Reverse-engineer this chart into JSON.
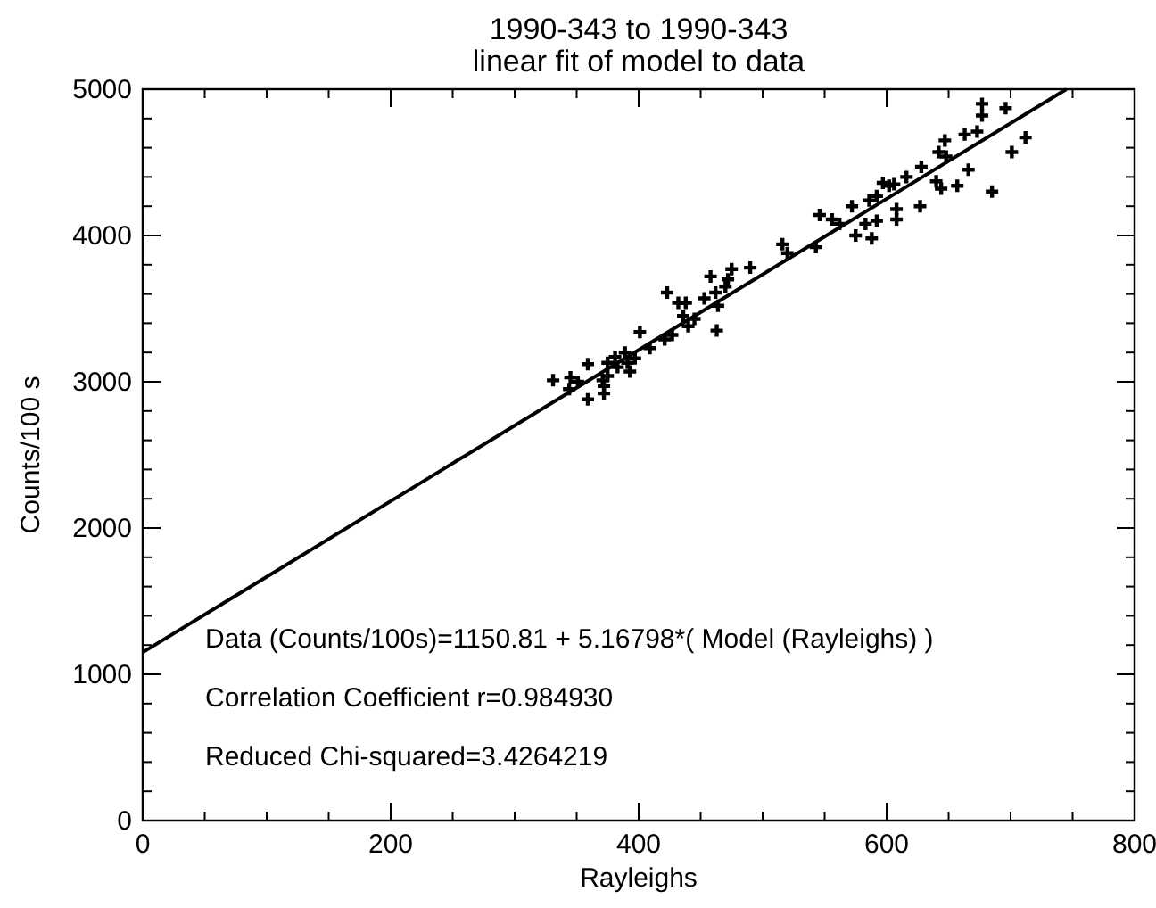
{
  "chart_data": {
    "type": "scatter",
    "title": "1990-343 to 1990-343",
    "subtitle": "linear fit of model to data",
    "xlabel": "Rayleighs",
    "ylabel": "Counts/100 s",
    "xlim": [
      0,
      800
    ],
    "ylim": [
      0,
      5000
    ],
    "xticks": [
      0,
      {
        "value": 50,
        "label": null
      },
      {
        "value": 100,
        "label": null
      },
      {
        "value": 150,
        "label": null
      },
      200,
      {
        "value": 250,
        "label": null
      },
      {
        "value": 300,
        "label": null
      },
      {
        "value": 350,
        "label": null
      },
      400,
      {
        "value": 450,
        "label": null
      },
      {
        "value": 500,
        "label": null
      },
      {
        "value": 550,
        "label": null
      },
      600,
      {
        "value": 650,
        "label": null
      },
      {
        "value": 700,
        "label": null
      },
      {
        "value": 750,
        "label": null
      },
      800
    ],
    "yticks": [
      0,
      {
        "value": 200,
        "label": null
      },
      {
        "value": 400,
        "label": null
      },
      {
        "value": 600,
        "label": null
      },
      {
        "value": 800,
        "label": null
      },
      1000,
      {
        "value": 1200,
        "label": null
      },
      {
        "value": 1400,
        "label": null
      },
      {
        "value": 1600,
        "label": null
      },
      {
        "value": 1800,
        "label": null
      },
      2000,
      {
        "value": 2200,
        "label": null
      },
      {
        "value": 2400,
        "label": null
      },
      {
        "value": 2600,
        "label": null
      },
      {
        "value": 2800,
        "label": null
      },
      3000,
      {
        "value": 3200,
        "label": null
      },
      {
        "value": 3400,
        "label": null
      },
      {
        "value": 3600,
        "label": null
      },
      {
        "value": 3800,
        "label": null
      },
      4000,
      {
        "value": 4200,
        "label": null
      },
      {
        "value": 4400,
        "label": null
      },
      {
        "value": 4600,
        "label": null
      },
      {
        "value": 4800,
        "label": null
      },
      5000
    ],
    "marker": "cross",
    "grid": false,
    "series": [
      {
        "color": "#000000",
        "x": [
          331,
          345,
          351,
          344,
          359,
          359,
          371,
          372,
          372,
          375,
          375,
          381,
          383,
          389,
          391,
          393,
          397,
          401,
          409,
          421,
          423,
          427,
          432,
          436,
          438,
          440,
          445,
          453,
          458,
          462,
          463,
          464,
          470,
          472,
          475,
          490,
          516,
          520,
          543,
          546,
          556,
          562,
          572,
          575,
          583,
          586,
          588,
          592,
          592,
          597,
          602,
          606,
          608,
          608,
          616,
          627,
          628,
          640,
          642,
          644,
          647,
          648,
          657,
          663,
          666,
          673,
          677,
          677,
          685,
          696,
          701,
          712
        ],
        "values": [
          3010,
          3030,
          3000,
          2950,
          3120,
          2880,
          3010,
          2970,
          2920,
          3040,
          3130,
          3170,
          3100,
          3200,
          3130,
          3070,
          3160,
          3340,
          3230,
          3290,
          3610,
          3320,
          3540,
          3450,
          3540,
          3380,
          3430,
          3570,
          3720,
          3610,
          3350,
          3520,
          3650,
          3700,
          3770,
          3780,
          3940,
          3880,
          3920,
          4140,
          4110,
          4080,
          4200,
          4000,
          4080,
          4240,
          3980,
          4270,
          4100,
          4360,
          4340,
          4350,
          4180,
          4110,
          4400,
          4200,
          4470,
          4370,
          4570,
          4320,
          4650,
          4540,
          4340,
          4690,
          4450,
          4710,
          4820,
          4900,
          4300,
          4870,
          4570,
          4670
        ]
      },
      {
        "type": "line",
        "color": "#000000",
        "marker": "none",
        "line_style": "solid",
        "x": [
          0,
          745
        ],
        "values": [
          1150,
          5000
        ]
      }
    ],
    "annotations": [
      "Data (Counts/100s)=1150.81 + 5.16798*( Model (Rayleighs) )",
      "Correlation Coefficient r=0.984930",
      "Reduced Chi-squared=3.4264219"
    ]
  }
}
